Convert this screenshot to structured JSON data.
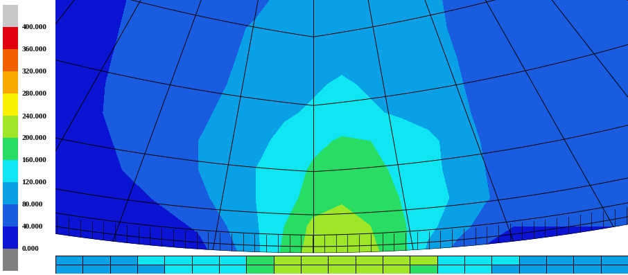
{
  "chart_data": {
    "type": "contour",
    "tick_labels": false,
    "colors": [
      "#808080",
      "#0a14d2",
      "#1a5ce0",
      "#0aa0e6",
      "#10e6f2",
      "#28dc64",
      "#a0e628",
      "#f8f000",
      "#f8a800",
      "#f06000",
      "#e00010",
      "#c8c8c8"
    ],
    "colorbar": {
      "range": [
        0,
        400
      ],
      "ticks": [
        {
          "value": 0,
          "label": "0.000"
        },
        {
          "value": 40,
          "label": "40.000"
        },
        {
          "value": 80,
          "label": "80.000"
        },
        {
          "value": 120,
          "label": "120.000"
        },
        {
          "value": 160,
          "label": "160.000"
        },
        {
          "value": 200,
          "label": "200.000"
        },
        {
          "value": 240,
          "label": "240.000"
        },
        {
          "value": 280,
          "label": "280.000"
        },
        {
          "value": 320,
          "label": "320.000"
        },
        {
          "value": 360,
          "label": "360.000"
        },
        {
          "value": 400,
          "label": "400.000"
        }
      ]
    },
    "cells": {
      "roller": [
        [
          20,
          20,
          30,
          50,
          60,
          60,
          65,
          70,
          90,
          100,
          100,
          100,
          95,
          90,
          70,
          60,
          55,
          55,
          55,
          55,
          55
        ],
        [
          20,
          20,
          35,
          55,
          60,
          65,
          70,
          85,
          95,
          100,
          105,
          100,
          100,
          90,
          75,
          60,
          55,
          55,
          55,
          55,
          55
        ],
        [
          20,
          20,
          40,
          55,
          60,
          65,
          75,
          90,
          100,
          105,
          110,
          105,
          100,
          95,
          80,
          65,
          55,
          55,
          55,
          55,
          55
        ],
        [
          20,
          25,
          45,
          55,
          60,
          70,
          80,
          95,
          105,
          115,
          125,
          115,
          105,
          100,
          85,
          65,
          55,
          55,
          55,
          55,
          55
        ],
        [
          20,
          30,
          45,
          55,
          65,
          75,
          85,
          100,
          115,
          125,
          135,
          125,
          115,
          105,
          90,
          70,
          55,
          55,
          55,
          55,
          55
        ],
        [
          20,
          30,
          40,
          55,
          70,
          80,
          95,
          110,
          130,
          150,
          165,
          160,
          145,
          130,
          105,
          75,
          55,
          55,
          55,
          55,
          55
        ],
        [
          20,
          25,
          35,
          50,
          65,
          80,
          100,
          120,
          140,
          165,
          180,
          175,
          150,
          130,
          110,
          80,
          55,
          50,
          50,
          50,
          50
        ],
        [
          20,
          20,
          25,
          35,
          50,
          70,
          95,
          120,
          145,
          175,
          195,
          185,
          160,
          135,
          115,
          85,
          55,
          45,
          45,
          45,
          45
        ],
        [
          20,
          20,
          20,
          20,
          30,
          45,
          80,
          115,
          160,
          210,
          215,
          200,
          170,
          130,
          100,
          60,
          40,
          40,
          40,
          40,
          40
        ],
        [
          20,
          20,
          20,
          20,
          20,
          25,
          60,
          110,
          170,
          220,
          230,
          210,
          180,
          110,
          60,
          30,
          20,
          20,
          20,
          20,
          20
        ]
      ],
      "strip": [
        [
          100,
          100,
          110,
          120,
          125,
          130,
          135,
          170,
          210,
          215,
          215,
          215,
          210,
          200,
          140,
          130,
          120,
          110,
          110,
          105,
          100
        ],
        [
          95,
          100,
          105,
          115,
          120,
          125,
          130,
          165,
          205,
          210,
          215,
          210,
          205,
          195,
          135,
          125,
          115,
          105,
          105,
          100,
          95
        ]
      ]
    }
  }
}
